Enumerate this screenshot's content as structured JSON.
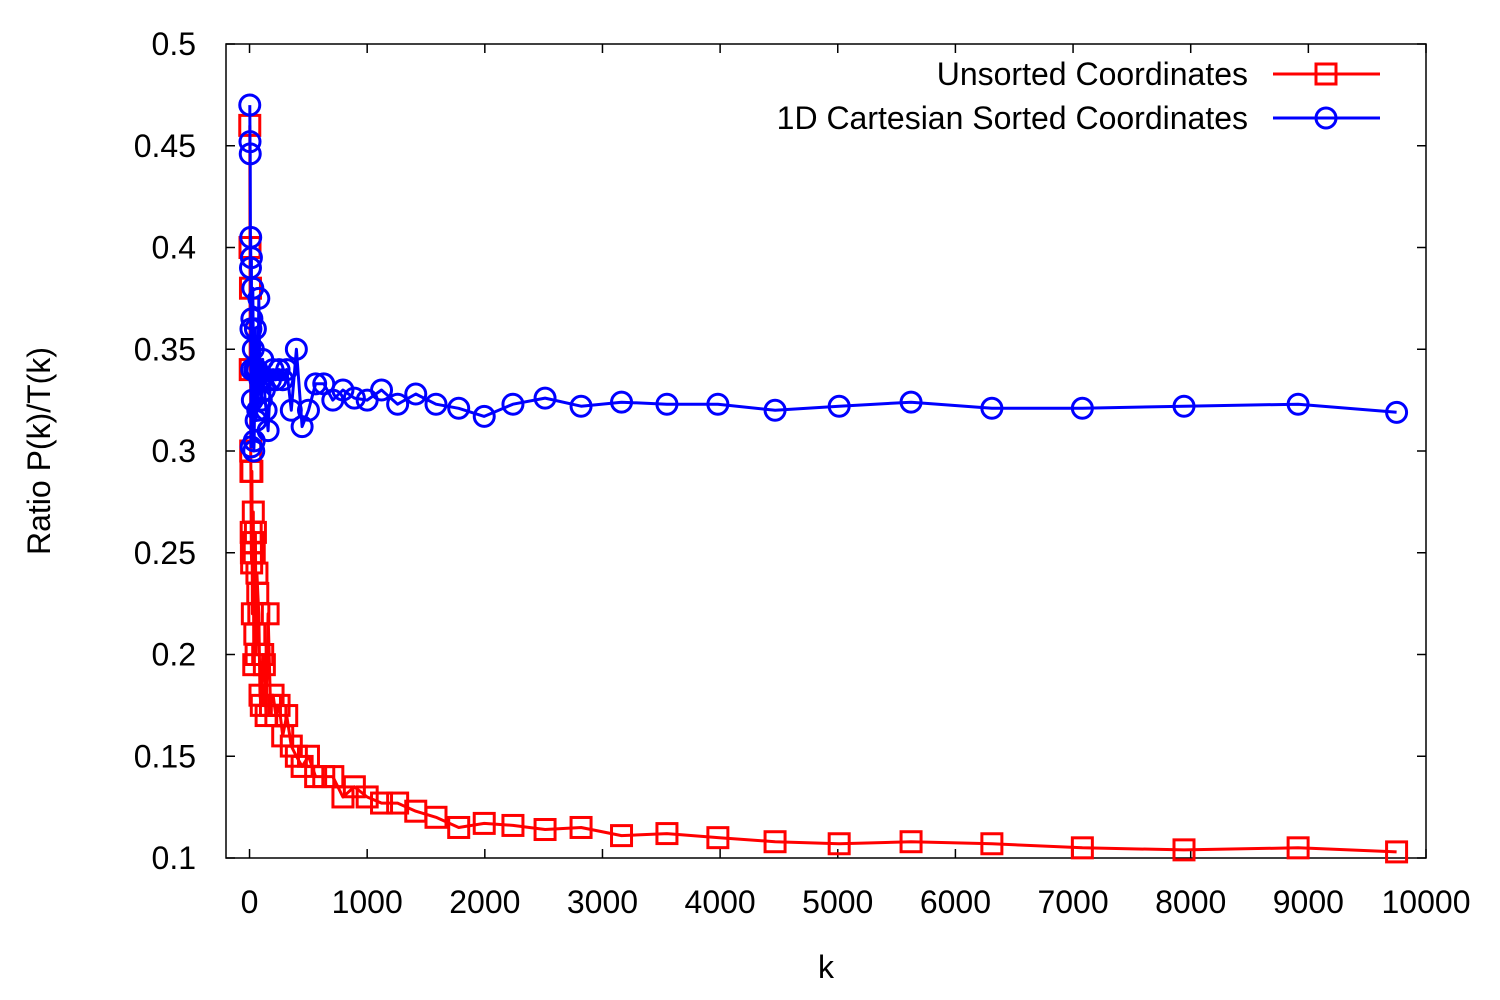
{
  "chart_data": {
    "type": "line",
    "title": "",
    "xlabel": "k",
    "ylabel": "Ratio P(k)/T(k)",
    "xlim": [
      -200,
      10000
    ],
    "ylim": [
      0.1,
      0.5
    ],
    "xticks": [
      0,
      1000,
      2000,
      3000,
      4000,
      5000,
      6000,
      7000,
      8000,
      9000,
      10000
    ],
    "yticks": [
      0.1,
      0.15,
      0.2,
      0.25,
      0.3,
      0.35,
      0.4,
      0.45,
      0.5
    ],
    "xtick_labels": [
      "0",
      "1000",
      "2000",
      "3000",
      "4000",
      "5000",
      "6000",
      "7000",
      "8000",
      "9000",
      "10000"
    ],
    "ytick_labels": [
      "0.1",
      "0.15",
      "0.2",
      "0.25",
      "0.3",
      "0.35",
      "0.4",
      "0.45",
      "0.5"
    ],
    "grid": false,
    "legend_position": "top-right",
    "series": [
      {
        "name": "Unsorted Coordinates",
        "color": "#ff0000",
        "marker": "square",
        "x": [
          2,
          4,
          6,
          8,
          10,
          12,
          14,
          16,
          18,
          20,
          24,
          28,
          32,
          36,
          40,
          45,
          50,
          56,
          63,
          70,
          79,
          89,
          100,
          112,
          126,
          141,
          158,
          178,
          200,
          224,
          251,
          282,
          316,
          355,
          398,
          447,
          501,
          562,
          631,
          708,
          794,
          891,
          1000,
          1122,
          1259,
          1413,
          1585,
          1778,
          1995,
          2239,
          2512,
          2818,
          3162,
          3548,
          3981,
          4467,
          5012,
          5623,
          6310,
          7079,
          7943,
          8913,
          9750
        ],
        "y": [
          0.46,
          0.4,
          0.34,
          0.38,
          0.3,
          0.29,
          0.26,
          0.25,
          0.245,
          0.29,
          0.22,
          0.255,
          0.27,
          0.195,
          0.25,
          0.21,
          0.26,
          0.2,
          0.24,
          0.23,
          0.22,
          0.18,
          0.175,
          0.2,
          0.195,
          0.17,
          0.22,
          0.175,
          0.18,
          0.17,
          0.175,
          0.16,
          0.17,
          0.155,
          0.15,
          0.145,
          0.15,
          0.14,
          0.14,
          0.14,
          0.13,
          0.135,
          0.13,
          0.127,
          0.127,
          0.123,
          0.12,
          0.115,
          0.117,
          0.116,
          0.114,
          0.115,
          0.111,
          0.112,
          0.11,
          0.108,
          0.107,
          0.108,
          0.107,
          0.105,
          0.104,
          0.105,
          0.103
        ]
      },
      {
        "name": "1D Cartesian Sorted Coordinates",
        "color": "#0000ff",
        "marker": "circle",
        "x": [
          2,
          4,
          6,
          8,
          10,
          12,
          14,
          16,
          18,
          20,
          24,
          28,
          32,
          36,
          40,
          45,
          50,
          56,
          63,
          70,
          79,
          89,
          100,
          112,
          126,
          141,
          158,
          178,
          200,
          224,
          251,
          282,
          316,
          355,
          398,
          447,
          501,
          562,
          631,
          708,
          794,
          891,
          1000,
          1122,
          1259,
          1413,
          1585,
          1778,
          1995,
          2239,
          2512,
          2818,
          3162,
          3548,
          3981,
          4467,
          5012,
          5623,
          6310,
          7079,
          7943,
          8913,
          9750
        ],
        "y": [
          0.47,
          0.452,
          0.446,
          0.39,
          0.405,
          0.36,
          0.302,
          0.395,
          0.34,
          0.365,
          0.325,
          0.38,
          0.35,
          0.3,
          0.305,
          0.34,
          0.36,
          0.315,
          0.34,
          0.32,
          0.375,
          0.335,
          0.325,
          0.345,
          0.33,
          0.32,
          0.31,
          0.335,
          0.34,
          0.335,
          0.34,
          0.335,
          0.34,
          0.32,
          0.35,
          0.312,
          0.32,
          0.333,
          0.333,
          0.325,
          0.33,
          0.326,
          0.325,
          0.33,
          0.323,
          0.328,
          0.323,
          0.321,
          0.317,
          0.323,
          0.326,
          0.322,
          0.324,
          0.323,
          0.323,
          0.32,
          0.322,
          0.324,
          0.321,
          0.321,
          0.322,
          0.323,
          0.319
        ]
      }
    ]
  }
}
